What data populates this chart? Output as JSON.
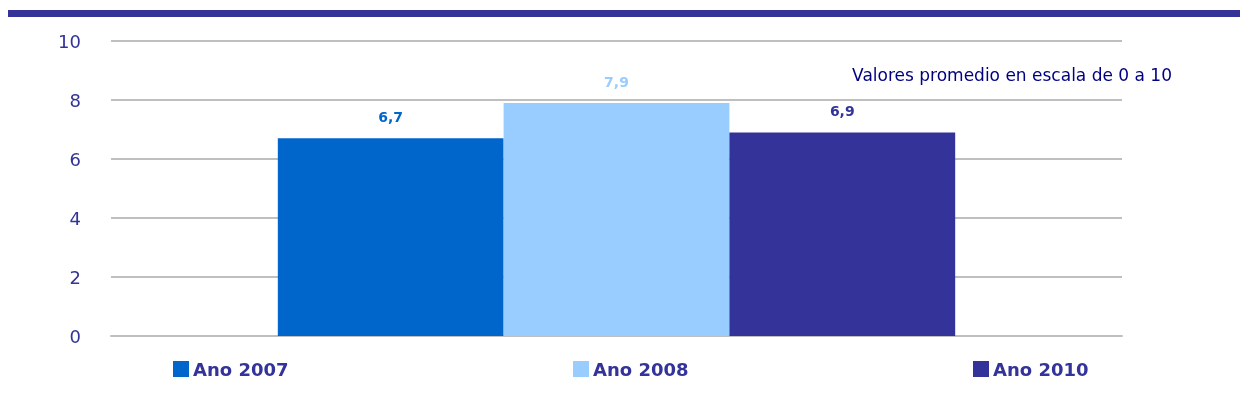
{
  "chart_data": {
    "type": "bar",
    "categories": [
      null
    ],
    "series": [
      {
        "name": "Ano 2007",
        "color": "#0066cc",
        "values": [
          6.7
        ],
        "value_labels": [
          "6,7"
        ]
      },
      {
        "name": "Ano 2008",
        "color": "#99ccff",
        "values": [
          7.9
        ],
        "value_labels": [
          "7,9"
        ]
      },
      {
        "name": "Ano 2010",
        "color": "#333399",
        "values": [
          6.9
        ],
        "value_labels": [
          "6,9"
        ]
      }
    ],
    "ylim": [
      0,
      10
    ],
    "yticks": [
      0,
      2,
      4,
      6,
      8,
      10
    ],
    "grid": "y",
    "legend": "bottom",
    "annotations": [
      "Valores promedio en escala de 0 a 10"
    ]
  }
}
